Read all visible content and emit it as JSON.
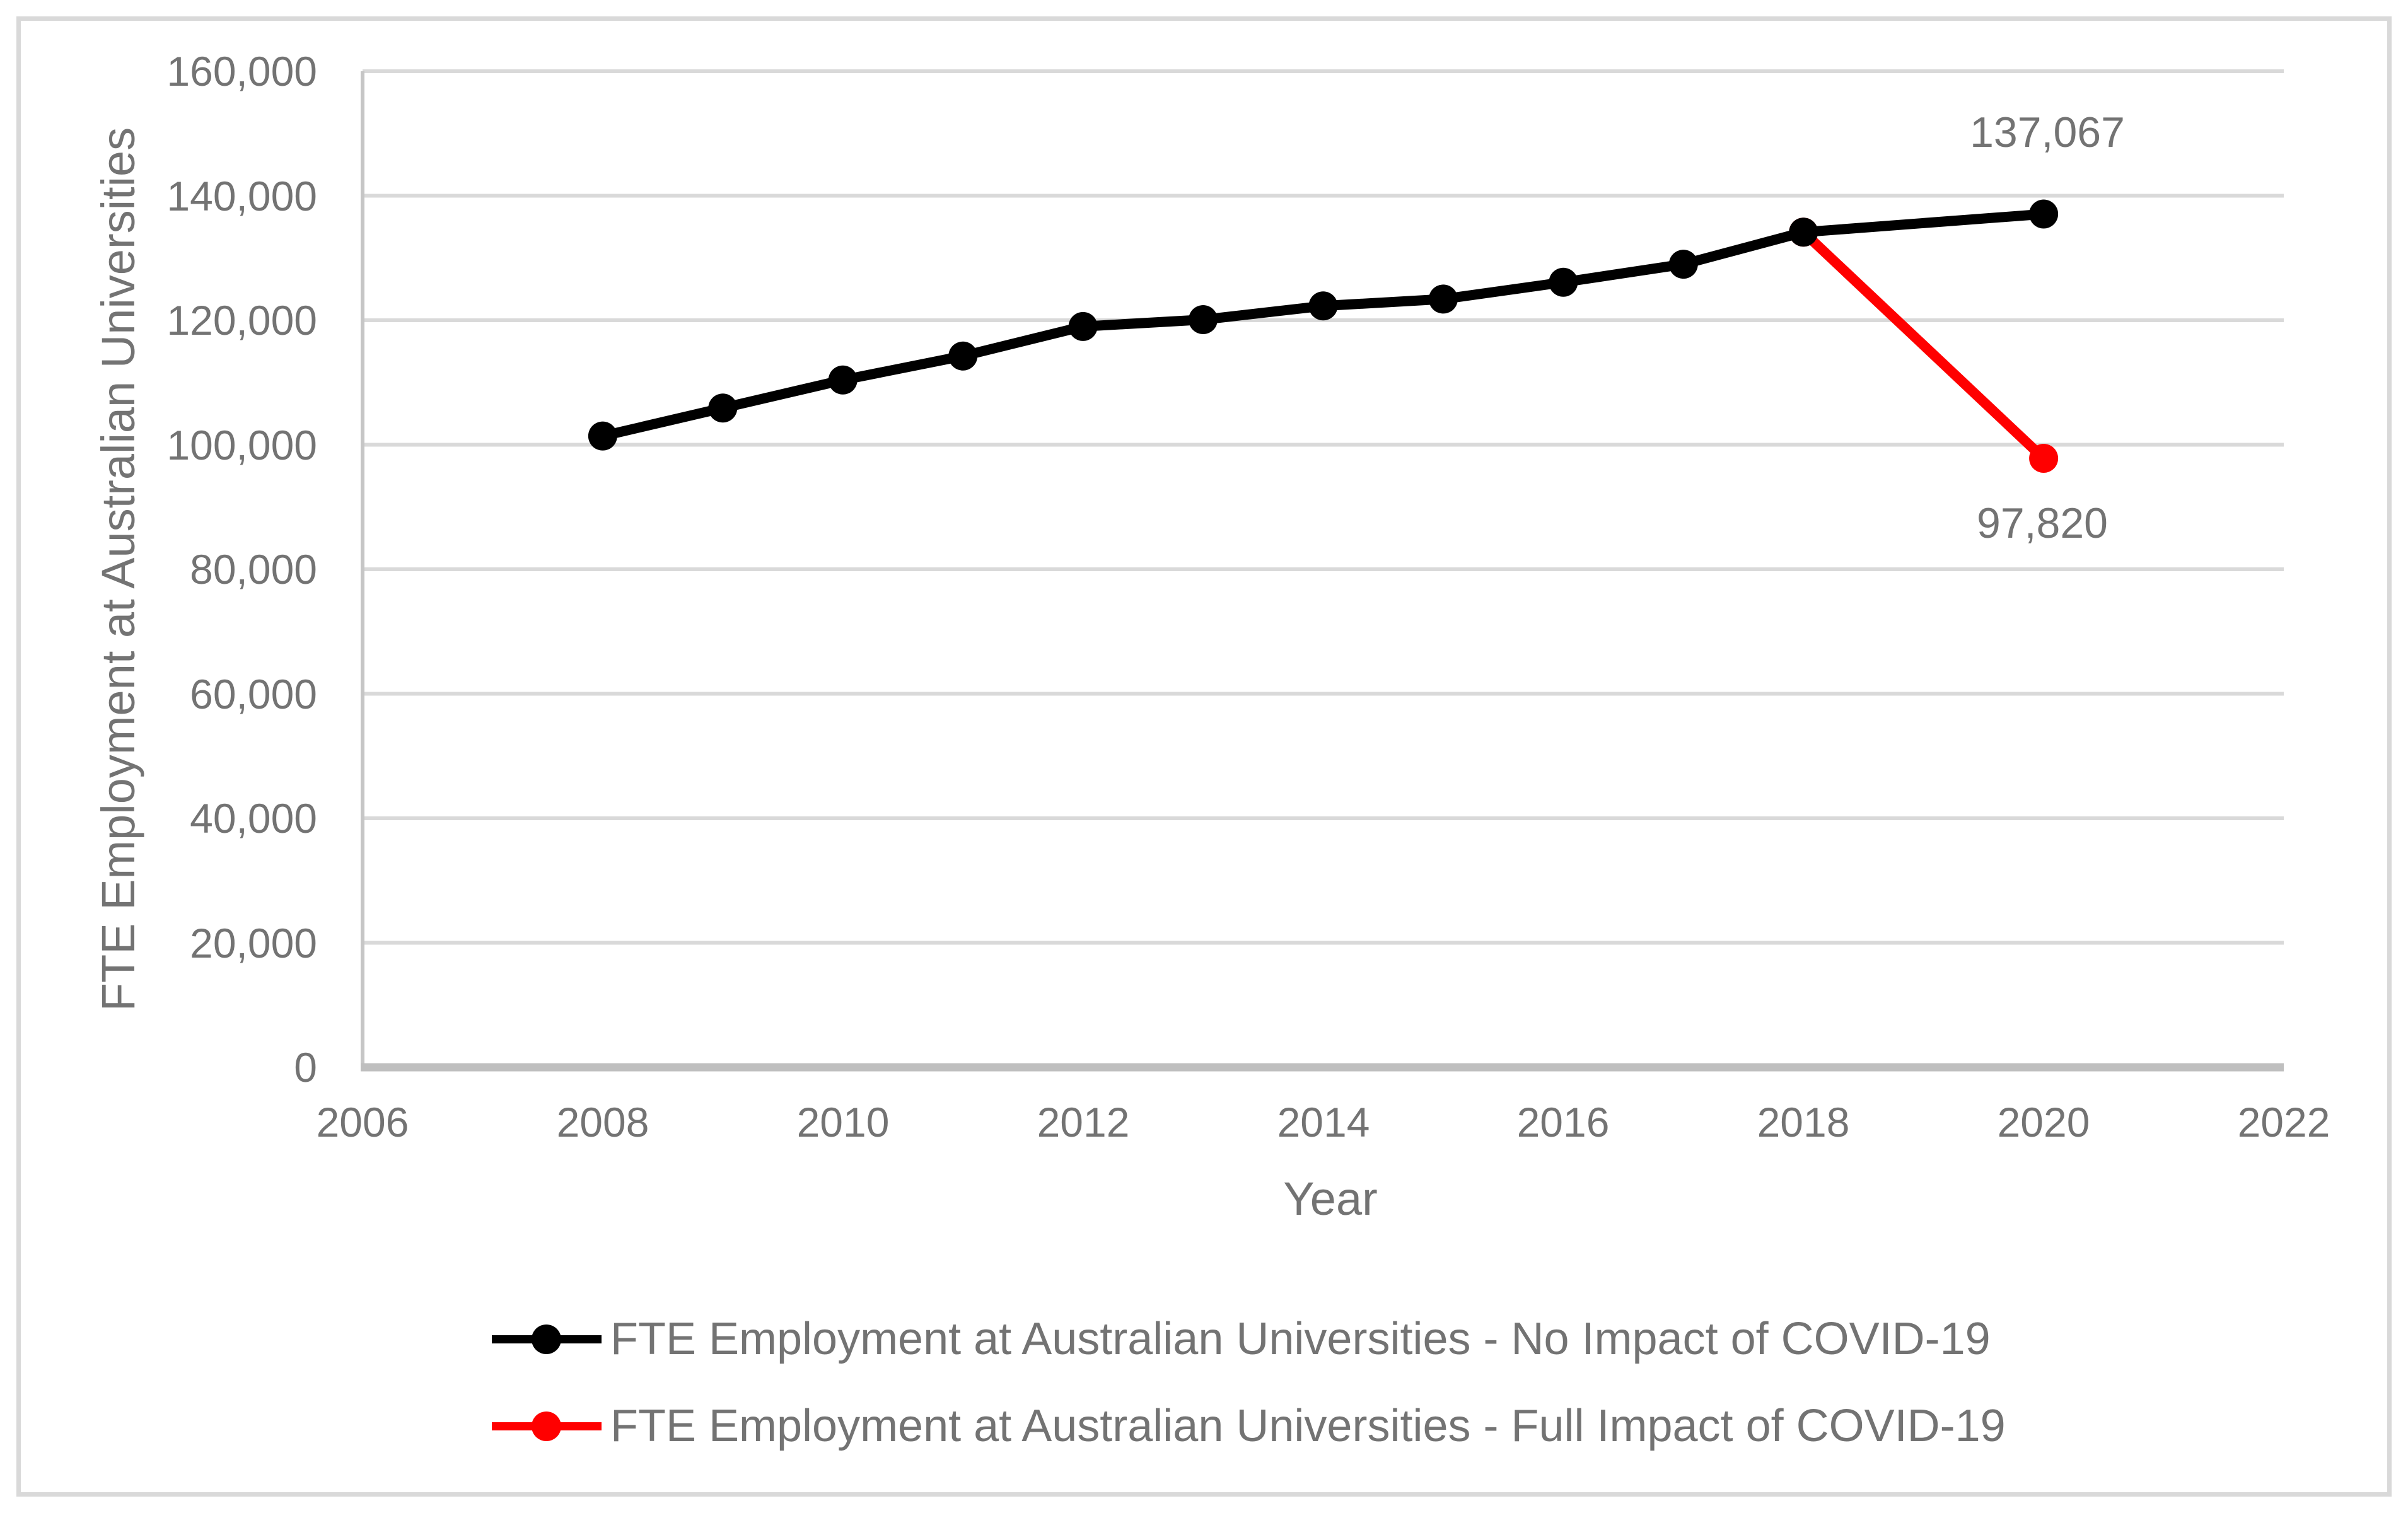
{
  "figure": {
    "kind": "excel-line-chart",
    "background": "#FFFFFF",
    "border_color": "#D9D9D9"
  },
  "colors": {
    "series_no_impact": "#000000",
    "series_full_impact": "#FF0000",
    "gridline": "#D9D9D9",
    "y_axis_line": "#C6C6C6",
    "x_axis_line": "#BFBFBF",
    "text": "#737373"
  },
  "chart_data": {
    "type": "line",
    "title": "",
    "xlabel": "Year",
    "ylabel": "FTE Employment at Australian Universities",
    "xlim": [
      2006,
      2022
    ],
    "ylim": [
      0,
      160000
    ],
    "grid": "horizontal",
    "legend_position": "bottom",
    "x_ticks": [
      {
        "value": 2006,
        "label": "2006"
      },
      {
        "value": 2008,
        "label": "2008"
      },
      {
        "value": 2010,
        "label": "2010"
      },
      {
        "value": 2012,
        "label": "2012"
      },
      {
        "value": 2014,
        "label": "2014"
      },
      {
        "value": 2016,
        "label": "2016"
      },
      {
        "value": 2018,
        "label": "2018"
      },
      {
        "value": 2020,
        "label": "2020"
      },
      {
        "value": 2022,
        "label": "2022"
      }
    ],
    "y_ticks": [
      {
        "value": 0,
        "label": "0"
      },
      {
        "value": 20000,
        "label": "20,000"
      },
      {
        "value": 40000,
        "label": "40,000"
      },
      {
        "value": 60000,
        "label": "60,000"
      },
      {
        "value": 80000,
        "label": "80,000"
      },
      {
        "value": 100000,
        "label": "100,000"
      },
      {
        "value": 120000,
        "label": "120,000"
      },
      {
        "value": 140000,
        "label": "140,000"
      },
      {
        "value": 160000,
        "label": "160,000"
      }
    ],
    "series": [
      {
        "name": "FTE Employment at Australian Universities - No Impact of COVID-19",
        "color": "#000000",
        "x": [
          2008,
          2009,
          2010,
          2011,
          2012,
          2013,
          2014,
          2015,
          2016,
          2017,
          2018,
          2020
        ],
        "values": [
          101400,
          105900,
          110400,
          114250,
          119000,
          120100,
          122300,
          123400,
          126100,
          129000,
          134150,
          137067
        ]
      },
      {
        "name": "FTE Employment at Australian Universities - Full Impact of COVID-19",
        "color": "#FF0000",
        "x": [
          2018,
          2020
        ],
        "values": [
          134150,
          97820
        ]
      }
    ],
    "data_labels": [
      {
        "series": 0,
        "x": 2020,
        "text": "137,067",
        "position": "above"
      },
      {
        "series": 1,
        "x": 2020,
        "text": "97,820",
        "position": "below"
      }
    ]
  },
  "legend": {
    "items": [
      {
        "label": "FTE Employment at Australian Universities - No Impact of COVID-19",
        "color": "#000000"
      },
      {
        "label": "FTE Employment at Australian Universities - Full Impact of COVID-19",
        "color": "#FF0000"
      }
    ]
  }
}
